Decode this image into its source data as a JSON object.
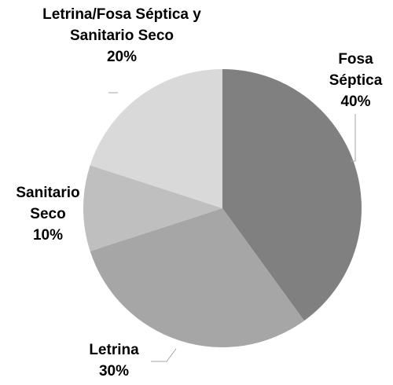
{
  "chart_data": {
    "type": "pie",
    "categories": [
      "Fosa Séptica",
      "Letrina",
      "Sanitario Seco",
      "Letrina/Fosa Séptica y Sanitario Seco"
    ],
    "values": [
      40,
      30,
      10,
      20
    ],
    "value_labels": [
      "40%",
      "30%",
      "10%",
      "20%"
    ],
    "colors": [
      "#808080",
      "#a6a6a6",
      "#bfbfbf",
      "#d9d9d9"
    ]
  }
}
